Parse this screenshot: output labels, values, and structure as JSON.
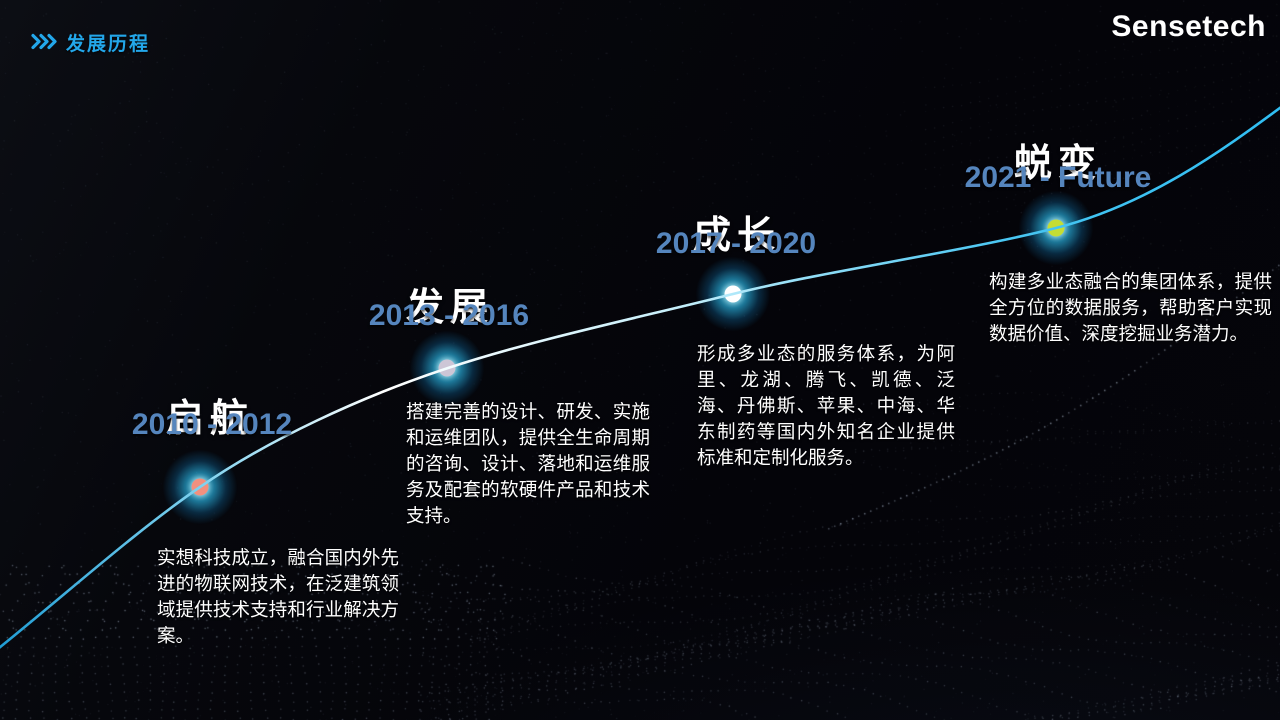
{
  "header": {
    "title": "发展历程",
    "chevrons_icon": "triple-chevron-right",
    "accent_color": "#23a7ea"
  },
  "logo": {
    "text": "Sensetech"
  },
  "timeline": {
    "line_color": "#35c8f5",
    "glow_color": "#2fc3f7",
    "year_color": "#5585bd",
    "milestones": [
      {
        "title": "启航",
        "period": "2010 - 2012",
        "dot_color": "#f2907e",
        "description": "实想科技成立，融合国内外先进的物联网技术，在泛建筑领域提供技术支持和行业解决方案。"
      },
      {
        "title": "发展",
        "period": "2013 - 2016",
        "dot_color": "#cdc6d6",
        "description": "搭建完善的设计、研发、实施和运维团队，提供全生命周期的咨询、设计、落地和运维服务及配套的软硬件产品和技术支持。"
      },
      {
        "title": "成长",
        "period": "2017 - 2020",
        "dot_color": "#ffffff",
        "description": "形成多业态的服务体系，为阿里、龙湖、腾飞、凯德、泛海、丹佛斯、苹果、中海、华东制药等国内外知名企业提供标准和定制化服务。"
      },
      {
        "title": "蜕变",
        "period": "2021 - Future",
        "dot_color": "#c4dd34",
        "description": "构建多业态融合的集团体系，提供全方位的数据服务，帮助客户实现数据价值、深度挖掘业务潜力。"
      }
    ]
  }
}
